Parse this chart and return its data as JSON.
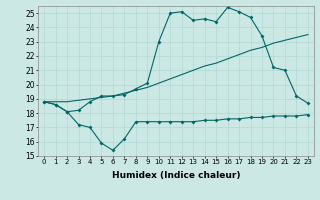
{
  "xlabel": "Humidex (Indice chaleur)",
  "ylabel": "",
  "background_color": "#cce8e4",
  "grid_color": "#b0d8d4",
  "line_color": "#006666",
  "xlim": [
    -0.5,
    23.5
  ],
  "ylim": [
    15,
    25.5
  ],
  "yticks": [
    15,
    16,
    17,
    18,
    19,
    20,
    21,
    22,
    23,
    24,
    25
  ],
  "xticks": [
    0,
    1,
    2,
    3,
    4,
    5,
    6,
    7,
    8,
    9,
    10,
    11,
    12,
    13,
    14,
    15,
    16,
    17,
    18,
    19,
    20,
    21,
    22,
    23
  ],
  "series1_x": [
    0,
    1,
    2,
    3,
    4,
    5,
    6,
    7,
    8,
    9,
    10,
    11,
    12,
    13,
    14,
    15,
    16,
    17,
    18,
    19,
    20,
    21,
    22,
    23
  ],
  "series1_y": [
    18.8,
    18.6,
    18.1,
    17.2,
    17.0,
    15.9,
    15.4,
    16.2,
    17.4,
    17.4,
    17.4,
    17.4,
    17.4,
    17.4,
    17.5,
    17.5,
    17.6,
    17.6,
    17.7,
    17.7,
    17.8,
    17.8,
    17.8,
    17.9
  ],
  "series2_x": [
    0,
    1,
    2,
    3,
    4,
    5,
    6,
    7,
    8,
    9,
    10,
    11,
    12,
    13,
    14,
    15,
    16,
    17,
    18,
    19,
    20,
    21,
    22,
    23
  ],
  "series2_y": [
    18.8,
    18.8,
    18.8,
    18.9,
    19.0,
    19.1,
    19.2,
    19.4,
    19.6,
    19.8,
    20.1,
    20.4,
    20.7,
    21.0,
    21.3,
    21.5,
    21.8,
    22.1,
    22.4,
    22.6,
    22.9,
    23.1,
    23.3,
    23.5
  ],
  "series3_x": [
    0,
    1,
    2,
    3,
    4,
    5,
    6,
    7,
    8,
    9,
    10,
    11,
    12,
    13,
    14,
    15,
    16,
    17,
    18,
    19,
    20,
    21,
    22,
    23
  ],
  "series3_y": [
    18.8,
    18.6,
    18.1,
    18.2,
    18.8,
    19.2,
    19.2,
    19.3,
    19.7,
    20.1,
    23.0,
    25.0,
    25.1,
    24.5,
    24.6,
    24.4,
    25.4,
    25.1,
    24.7,
    23.4,
    21.2,
    21.0,
    19.2,
    18.7
  ]
}
